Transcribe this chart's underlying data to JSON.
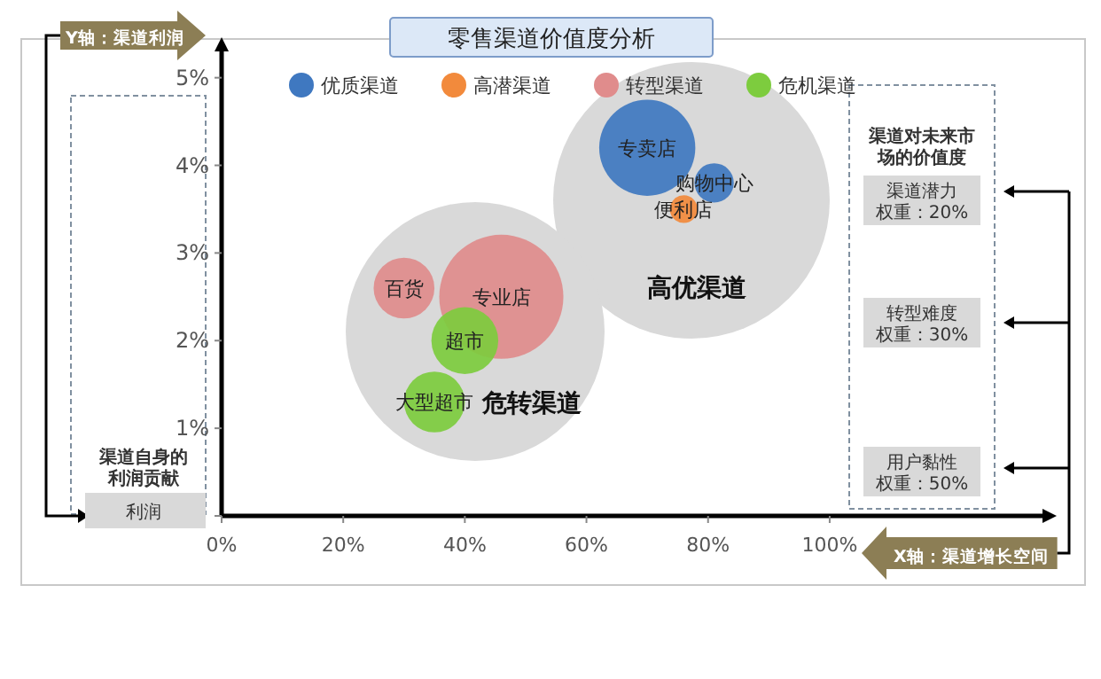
{
  "chart_data": {
    "type": "bubble",
    "title": "零售渠道价值度分析",
    "xlabel": "X轴：渠道增长空间",
    "ylabel": "Y轴：渠道利润",
    "xlim": [
      0,
      135
    ],
    "ylim": [
      0,
      5.3
    ],
    "xticks": [
      {
        "value": 0,
        "label": "0%"
      },
      {
        "value": 20,
        "label": "20%"
      },
      {
        "value": 40,
        "label": "40%"
      },
      {
        "value": 60,
        "label": "60%"
      },
      {
        "value": 80,
        "label": "80%"
      },
      {
        "value": 100,
        "label": "100%"
      }
    ],
    "yticks": [
      {
        "value": 0,
        "label": null
      },
      {
        "value": 1,
        "label": "1%"
      },
      {
        "value": 2,
        "label": "2%"
      },
      {
        "value": 3,
        "label": "3%"
      },
      {
        "value": 4,
        "label": "4%"
      },
      {
        "value": 5,
        "label": "5%"
      }
    ],
    "grid": false,
    "legend": "top",
    "marker": "circle",
    "series": [
      {
        "name": "优质渠道",
        "color": "#3f78c0",
        "x": [
          70,
          81
        ],
        "values": [
          4.2,
          3.8
        ],
        "sizes": [
          0.6,
          0.1
        ]
      },
      {
        "name": "高潜渠道",
        "color": "#f28a3c",
        "x": [
          76
        ],
        "values": [
          3.5
        ],
        "sizes": [
          0.05
        ]
      },
      {
        "name": "转型渠道",
        "color": "#e08c8c",
        "x": [
          30,
          46
        ],
        "values": [
          2.6,
          2.5
        ],
        "sizes": [
          0.24,
          1
        ]
      },
      {
        "name": "危机渠道",
        "color": "#7dcc3e",
        "x": [
          40,
          35
        ],
        "values": [
          2.0,
          1.3
        ],
        "sizes": [
          0.29,
          0.24
        ]
      }
    ],
    "annotations": [
      "高优渠道",
      "危转渠道",
      "渠道自身的利润贡献",
      "利润",
      "渠道对未来市场的价值度",
      "渠道潜力权重：20%",
      "转型难度权重：30%",
      "用户黏性权重：50%",
      {
        "text": "专卖店",
        "x": 70,
        "y": 4.2
      },
      {
        "text": "购物中心",
        "x": 81,
        "y": 3.8
      },
      {
        "text": "便利店",
        "x": 76,
        "y": 3.5
      },
      {
        "text": "百货",
        "x": 30,
        "y": 2.6
      },
      {
        "text": "专业店",
        "x": 46,
        "y": 2.5
      },
      {
        "text": "超市",
        "x": 40,
        "y": 2.0
      },
      {
        "text": "大型超市",
        "x": 35,
        "y": 1.3
      }
    ]
  }
}
